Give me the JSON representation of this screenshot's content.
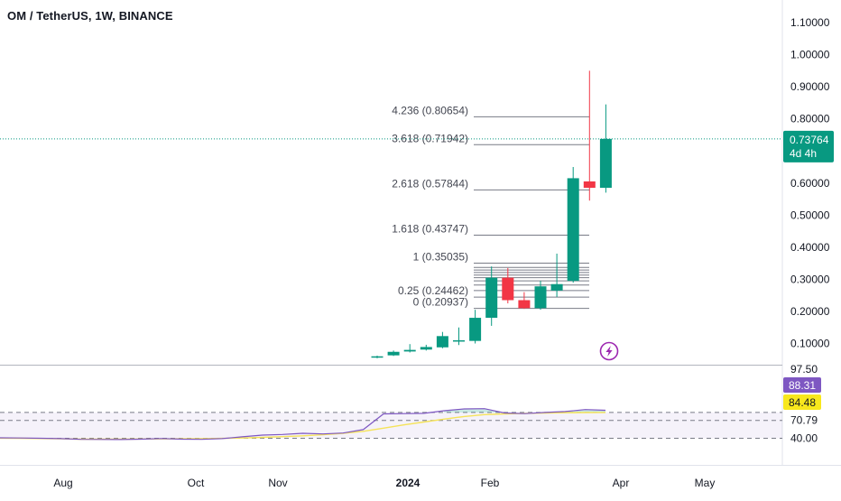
{
  "chart_data": {
    "type": "candlestick",
    "title": "OM / TetherUS, 1W, BINANCE",
    "x_tick_labels": [
      "Aug",
      "Oct",
      "Nov",
      "2024",
      "Feb",
      "Apr",
      "May"
    ],
    "price_axis": {
      "ticks": [
        "1.10000",
        "1.00000",
        "0.90000",
        "0.80000",
        "0.60000",
        "0.50000",
        "0.40000",
        "0.30000",
        "0.20000",
        "0.10000"
      ],
      "range": [
        0.0,
        1.13
      ]
    },
    "last_price": {
      "value": 0.73764,
      "label": "0.73764",
      "countdown": "4d 4h"
    },
    "candles": [
      {
        "o": 0.056,
        "h": 0.062,
        "l": 0.054,
        "c": 0.06
      },
      {
        "o": 0.063,
        "h": 0.078,
        "l": 0.061,
        "c": 0.074
      },
      {
        "o": 0.075,
        "h": 0.098,
        "l": 0.072,
        "c": 0.08
      },
      {
        "o": 0.081,
        "h": 0.096,
        "l": 0.078,
        "c": 0.089
      },
      {
        "o": 0.088,
        "h": 0.136,
        "l": 0.085,
        "c": 0.123
      },
      {
        "o": 0.11,
        "h": 0.15,
        "l": 0.095,
        "c": 0.11
      },
      {
        "o": 0.108,
        "h": 0.205,
        "l": 0.1,
        "c": 0.18
      },
      {
        "o": 0.18,
        "h": 0.34,
        "l": 0.155,
        "c": 0.305
      },
      {
        "o": 0.305,
        "h": 0.335,
        "l": 0.225,
        "c": 0.235
      },
      {
        "o": 0.235,
        "h": 0.26,
        "l": 0.208,
        "c": 0.21
      },
      {
        "o": 0.21,
        "h": 0.295,
        "l": 0.205,
        "c": 0.278
      },
      {
        "o": 0.265,
        "h": 0.38,
        "l": 0.245,
        "c": 0.285
      },
      {
        "o": 0.295,
        "h": 0.65,
        "l": 0.29,
        "c": 0.615
      },
      {
        "o": 0.605,
        "h": 0.95,
        "l": 0.545,
        "c": 0.585
      },
      {
        "o": 0.585,
        "h": 0.845,
        "l": 0.57,
        "c": 0.7376
      }
    ],
    "fibonacci_levels": [
      {
        "label": "4.236 (0.80654)",
        "value": 0.80654
      },
      {
        "label": "3.618 (0.71942)",
        "value": 0.71942
      },
      {
        "label": "2.618 (0.57844)",
        "value": 0.57844
      },
      {
        "label": "1.618 (0.43747)",
        "value": 0.43747
      },
      {
        "label": "1 (0.35035)",
        "value": 0.35035
      },
      {
        "label": "0.25 (0.24462)",
        "value": 0.24462
      },
      {
        "label": "0 (0.20937)",
        "value": 0.20937
      }
    ],
    "fib_cluster_values": [
      0.337,
      0.329,
      0.321,
      0.313,
      0.305,
      0.295,
      0.282,
      0.265
    ],
    "rsi": {
      "ticks": [
        "97.50",
        "70.79",
        "40.00"
      ],
      "range": [
        30,
        100
      ],
      "dashed_levels": [
        84.48,
        70.79,
        40.0
      ],
      "value_badge": "88.31",
      "ma_badge": "84.48",
      "line": [
        40.8,
        40.4,
        40.0,
        39.4,
        38.2,
        37.9,
        37.8,
        38.5,
        39.5,
        38.5,
        38.2,
        39.4,
        42.5,
        45.5,
        46.5,
        48.5,
        47.5,
        49.0,
        55.0,
        82.0,
        82.5,
        83.0,
        87.5,
        90.5,
        91.0,
        83.5,
        82.5,
        84.5,
        86.0,
        89.5,
        88.3
      ],
      "ma": [
        40.2,
        40.0,
        39.5,
        39.0,
        38.5,
        38.4,
        38.5,
        38.7,
        38.9,
        39.0,
        39.3,
        39.8,
        40.5,
        41.5,
        42.8,
        44.2,
        46.0,
        48.5,
        52.0,
        57.5,
        63.0,
        68.0,
        73.0,
        77.5,
        80.8,
        82.0,
        83.0,
        83.6,
        84.0,
        84.3,
        84.48
      ]
    },
    "colors": {
      "up": "#089981",
      "down": "#f23645",
      "rsi_line": "#7e57c2",
      "rsi_ma": "#f5e35a",
      "rsi_badge": "#7e57c2",
      "ma_badge": "#f8e71c",
      "fib_line": "#787b86",
      "last_price_line": "#089981",
      "bolt": "#9c27b0"
    },
    "grid": false,
    "icons": [
      "lightning-bolt-icon"
    ]
  }
}
